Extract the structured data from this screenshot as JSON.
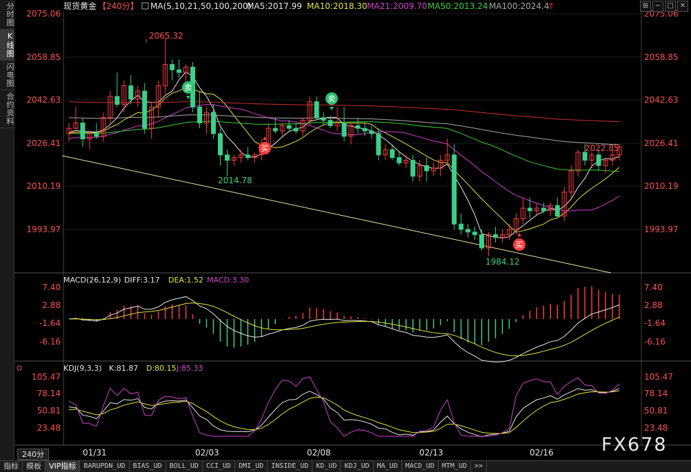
{
  "sidebar": {
    "items": [
      "分时图",
      "K线图",
      "闪电图",
      "合约资料"
    ],
    "active": 1
  },
  "main": {
    "title": "现货黄金",
    "period": "【240分】",
    "ma_label": "MA(5,10,21,50,100,200)",
    "ma": [
      {
        "label": "MA5:2017.99",
        "color": "#e8e8e8"
      },
      {
        "label": "MA10:2018.30",
        "color": "#e6e63c"
      },
      {
        "label": "MA21:2009.70",
        "color": "#d040d0"
      },
      {
        "label": "MA50:2013.24",
        "color": "#3ccf3c"
      },
      {
        "label": "MA100:2024.4",
        "color": "#a8a8a8"
      }
    ],
    "y_ticks": [
      "2075.06",
      "2058.85",
      "2042.63",
      "2026.41",
      "2010.19",
      "1993.97"
    ],
    "annotations": {
      "high": "2065.32",
      "low1": "2014.78",
      "low2": "1984.12",
      "last": "2022.85"
    },
    "signals": {
      "sell": "卖",
      "buy": "买"
    }
  },
  "macd": {
    "title": "MACD(26,12,9)",
    "diff": "DIFF:3.17",
    "dea": "DEA:1.52",
    "macd": "MACD:3.30",
    "y_ticks": [
      "7.40",
      "2.88",
      "-1.64",
      "-6.16"
    ]
  },
  "kdj": {
    "title": "KDJ(9,3,3)",
    "k": "K:81.87",
    "d": "D:80.15",
    "j": "J:85.33",
    "y_ticks": [
      "105.47",
      "78.14",
      "50.81",
      "23.48"
    ]
  },
  "x_dates": [
    "01/31",
    "02/03",
    "02/08",
    "02/13",
    "02/16"
  ],
  "period_button": "240分",
  "bottom_tabs": [
    "指标",
    "模板",
    "VIP指标",
    "BARUPDN_UD",
    "BIAS_UD",
    "BOLL_UD",
    "CCI_UD",
    "DMI_UD",
    "INSIDE_UD",
    "KD_UD",
    "KDJ_UD",
    "MA_UD",
    "MACD_UD",
    "MTM_UD",
    ">>"
  ],
  "active_tab": 2,
  "watermark": "FX678",
  "colors": {
    "up": "#ff3c3c",
    "down": "#3ccf8a",
    "trendline": "#e8e8a0",
    "ma200": "#cc3030"
  },
  "window_buttons": [
    "⊞",
    "−",
    "□",
    "✕"
  ]
}
